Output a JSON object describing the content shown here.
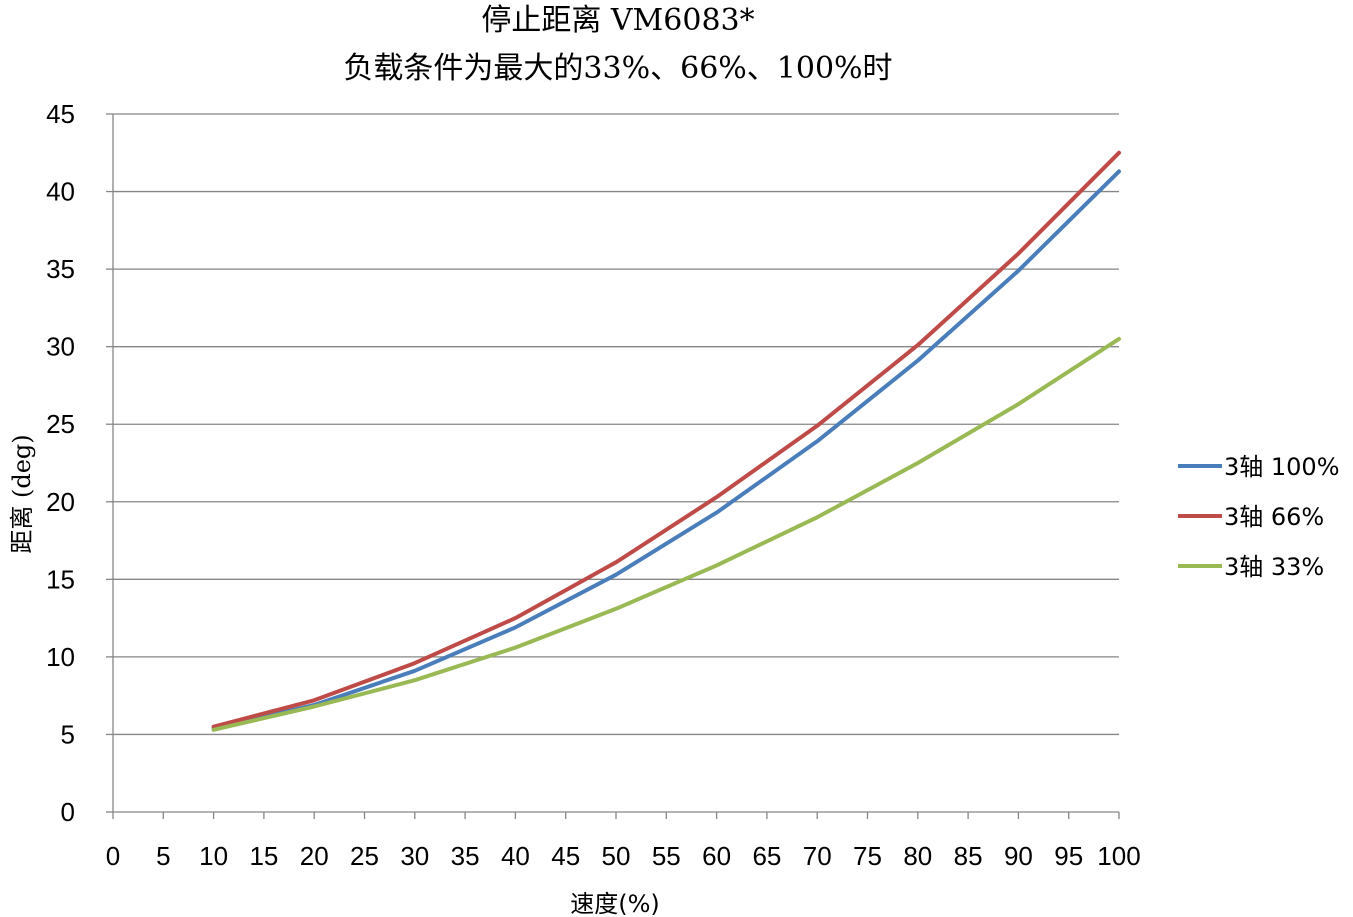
{
  "chart_data": {
    "type": "line",
    "title": "停止距离 VM6083*",
    "subtitle": "负载条件为最大的33%、66%、100%时",
    "xlabel": "速度(%)",
    "ylabel": "距离 (deg)",
    "xlim": [
      0,
      100
    ],
    "ylim": [
      0,
      45
    ],
    "xticks": [
      0,
      5,
      10,
      15,
      20,
      25,
      30,
      35,
      40,
      45,
      50,
      55,
      60,
      65,
      70,
      75,
      80,
      85,
      90,
      95,
      100
    ],
    "yticks": [
      0,
      5,
      10,
      15,
      20,
      25,
      30,
      35,
      40,
      45
    ],
    "grid": "horizontal",
    "legend_position": "right",
    "x": [
      10,
      20,
      30,
      40,
      50,
      60,
      70,
      80,
      90,
      100
    ],
    "series": [
      {
        "name": "3轴  100%",
        "color": "#4a7ebb",
        "values": [
          5.4,
          6.9,
          9.1,
          11.9,
          15.3,
          19.3,
          23.9,
          29.1,
          34.9,
          41.3
        ]
      },
      {
        "name": "3轴  66%",
        "color": "#be4b48",
        "values": [
          5.5,
          7.2,
          9.6,
          12.5,
          16.1,
          20.3,
          24.9,
          30.1,
          36.0,
          42.5
        ]
      },
      {
        "name": "3轴  33%",
        "color": "#98b954",
        "values": [
          5.3,
          6.8,
          8.5,
          10.6,
          13.1,
          15.9,
          19.0,
          22.5,
          26.3,
          30.5
        ]
      }
    ]
  }
}
